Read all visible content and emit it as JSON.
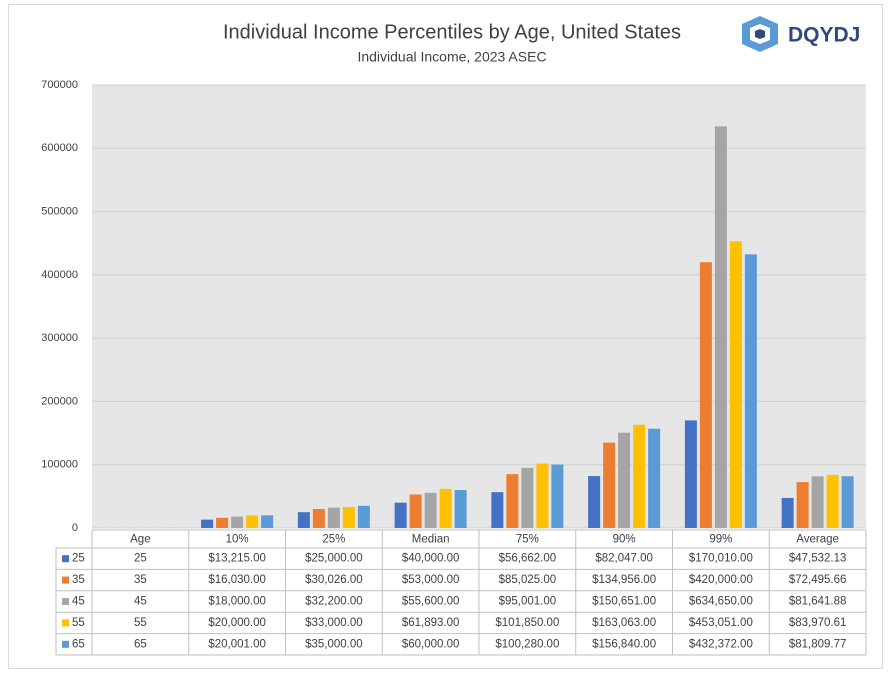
{
  "chart_data": {
    "type": "bar",
    "title": "Individual Income Percentiles by Age, United States",
    "subtitle": "Individual Income, 2023 ASEC",
    "categories": [
      "Age",
      "10%",
      "25%",
      "Median",
      "75%",
      "90%",
      "99%",
      "Average"
    ],
    "series": [
      {
        "name": "25",
        "color": "#4472c4",
        "values": [
          25,
          13215,
          25000,
          40000,
          56662,
          82047,
          170010,
          47532.13
        ],
        "value_labels": [
          "25",
          "$13,215.00",
          "$25,000.00",
          "$40,000.00",
          "$56,662.00",
          "$82,047.00",
          "$170,010.00",
          "$47,532.13"
        ]
      },
      {
        "name": "35",
        "color": "#ed7d31",
        "values": [
          35,
          16030,
          30026,
          53000,
          85025,
          134956,
          420000,
          72495.66
        ],
        "value_labels": [
          "35",
          "$16,030.00",
          "$30,026.00",
          "$53,000.00",
          "$85,025.00",
          "$134,956.00",
          "$420,000.00",
          "$72,495.66"
        ]
      },
      {
        "name": "45",
        "color": "#a5a5a5",
        "values": [
          45,
          18000,
          32200,
          55600,
          95001,
          150651,
          634650,
          81641.88
        ],
        "value_labels": [
          "45",
          "$18,000.00",
          "$32,200.00",
          "$55,600.00",
          "$95,001.00",
          "$150,651.00",
          "$634,650.00",
          "$81,641.88"
        ]
      },
      {
        "name": "55",
        "color": "#ffc000",
        "values": [
          55,
          20000,
          33000,
          61893,
          101850,
          163063,
          453051,
          83970.61
        ],
        "value_labels": [
          "55",
          "$20,000.00",
          "$33,000.00",
          "$61,893.00",
          "$101,850.00",
          "$163,063.00",
          "$453,051.00",
          "$83,970.61"
        ]
      },
      {
        "name": "65",
        "color": "#5b9bd5",
        "values": [
          65,
          20001,
          35000,
          60000,
          100280,
          156840,
          432372,
          81809.77
        ],
        "value_labels": [
          "65",
          "$20,001.00",
          "$35,000.00",
          "$60,000.00",
          "$100,280.00",
          "$156,840.00",
          "$432,372.00",
          "$81,809.77"
        ]
      }
    ],
    "ylim": [
      0,
      700000
    ],
    "yticks": [
      0,
      100000,
      200000,
      300000,
      400000,
      500000,
      600000,
      700000
    ],
    "grid": true
  },
  "logo": {
    "text": "DQYDJ"
  }
}
